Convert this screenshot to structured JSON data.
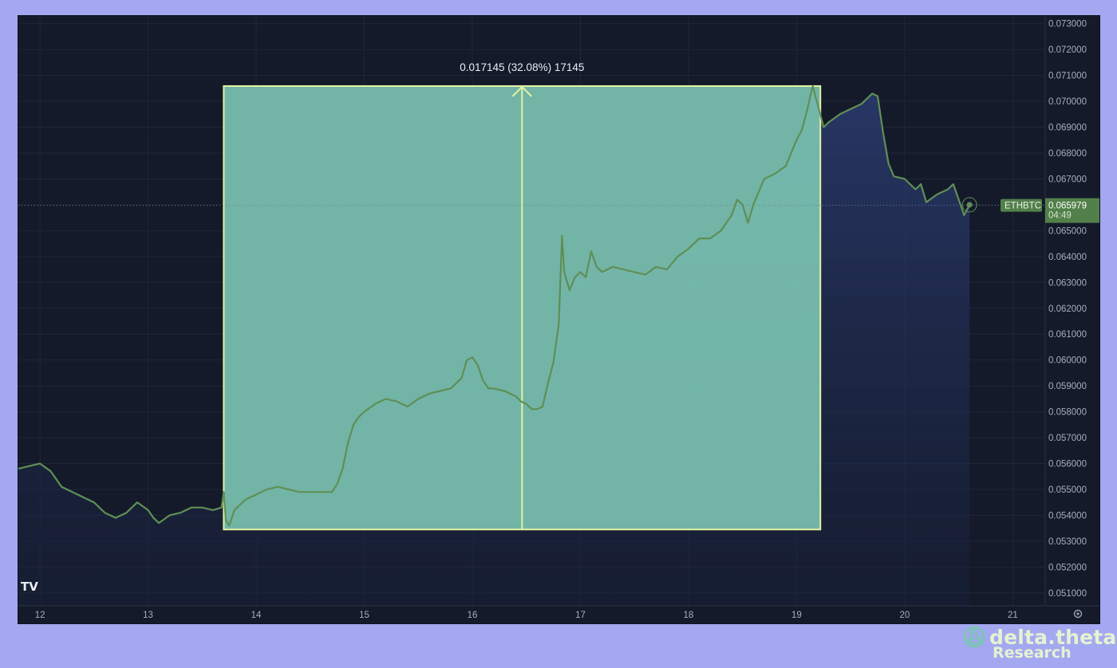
{
  "chart_data": {
    "type": "line",
    "symbol": "ETHBTC",
    "last_price": "0.065979",
    "countdown": "04:49",
    "x_ticks": [
      "12",
      "13",
      "14",
      "15",
      "16",
      "17",
      "18",
      "19",
      "20",
      "21"
    ],
    "y_ticks": [
      "0.073000",
      "0.072000",
      "0.071000",
      "0.070000",
      "0.069000",
      "0.068000",
      "0.067000",
      "0.066000",
      "0.065000",
      "0.064000",
      "0.063000",
      "0.062000",
      "0.061000",
      "0.060000",
      "0.059000",
      "0.058000",
      "0.057000",
      "0.056000",
      "0.055000",
      "0.054000",
      "0.053000",
      "0.052000",
      "0.051000"
    ],
    "xlim": [
      11.8,
      21.3
    ],
    "ylim": [
      0.0505,
      0.0733
    ],
    "grid": true,
    "series": [
      {
        "color": "#5f8f55",
        "x": [
          11.8,
          11.9,
          12.0,
          12.1,
          12.2,
          12.3,
          12.4,
          12.5,
          12.6,
          12.7,
          12.8,
          12.85,
          12.9,
          13.0,
          13.05,
          13.1,
          13.2,
          13.3,
          13.4,
          13.5,
          13.6,
          13.68,
          13.7,
          13.72,
          13.75,
          13.8,
          13.9,
          14.0,
          14.1,
          14.2,
          14.3,
          14.4,
          14.5,
          14.6,
          14.7,
          14.75,
          14.8,
          14.85,
          14.9,
          14.95,
          15.0,
          15.1,
          15.2,
          15.3,
          15.4,
          15.5,
          15.6,
          15.7,
          15.8,
          15.9,
          15.95,
          16.0,
          16.05,
          16.1,
          16.15,
          16.2,
          16.3,
          16.4,
          16.45,
          16.5,
          16.55,
          16.6,
          16.65,
          16.7,
          16.75,
          16.8,
          16.83,
          16.85,
          16.87,
          16.9,
          16.95,
          17.0,
          17.05,
          17.1,
          17.15,
          17.2,
          17.3,
          17.4,
          17.5,
          17.6,
          17.7,
          17.8,
          17.9,
          18.0,
          18.1,
          18.2,
          18.3,
          18.4,
          18.45,
          18.5,
          18.55,
          18.6,
          18.7,
          18.8,
          18.9,
          19.0,
          19.05,
          19.1,
          19.15,
          19.18,
          19.2,
          19.25,
          19.3,
          19.4,
          19.5,
          19.6,
          19.7,
          19.75,
          19.8,
          19.85,
          19.9,
          20.0,
          20.1,
          20.15,
          20.2,
          20.3,
          20.4,
          20.45,
          20.5,
          20.55,
          20.6
        ],
        "y": [
          0.0558,
          0.0559,
          0.056,
          0.0557,
          0.0551,
          0.0549,
          0.0547,
          0.0545,
          0.0541,
          0.0539,
          0.0541,
          0.0543,
          0.0545,
          0.0542,
          0.0539,
          0.0537,
          0.054,
          0.0541,
          0.0543,
          0.0543,
          0.0542,
          0.0543,
          0.0549,
          0.0538,
          0.0536,
          0.0542,
          0.0546,
          0.0548,
          0.055,
          0.0551,
          0.055,
          0.0549,
          0.0549,
          0.0549,
          0.0549,
          0.0552,
          0.0558,
          0.0568,
          0.0575,
          0.0578,
          0.058,
          0.0583,
          0.0585,
          0.0584,
          0.0582,
          0.0585,
          0.0587,
          0.0588,
          0.0589,
          0.0593,
          0.06,
          0.0601,
          0.0598,
          0.0592,
          0.0589,
          0.0589,
          0.0588,
          0.0586,
          0.0584,
          0.0583,
          0.0581,
          0.0581,
          0.0582,
          0.0591,
          0.0599,
          0.0614,
          0.0648,
          0.0634,
          0.0631,
          0.0627,
          0.0632,
          0.0634,
          0.0632,
          0.0642,
          0.0636,
          0.0634,
          0.0636,
          0.0635,
          0.0634,
          0.0633,
          0.0636,
          0.0635,
          0.064,
          0.0643,
          0.0647,
          0.0647,
          0.065,
          0.0656,
          0.0662,
          0.066,
          0.0653,
          0.066,
          0.067,
          0.0672,
          0.0675,
          0.0685,
          0.0689,
          0.0697,
          0.0706,
          0.0701,
          0.0698,
          0.069,
          0.0692,
          0.0695,
          0.0697,
          0.0699,
          0.0703,
          0.0702,
          0.0688,
          0.0676,
          0.0671,
          0.067,
          0.0666,
          0.0668,
          0.0661,
          0.0664,
          0.0666,
          0.0668,
          0.0662,
          0.0656,
          0.066
        ]
      }
    ]
  },
  "measure": {
    "label": "0.017145 (32.08%) 17145",
    "x_start": 13.7,
    "x_end": 19.22,
    "x_arrow": 16.46,
    "y_low": 0.05345,
    "y_high": 0.07059
  },
  "brand": {
    "name": "delta.theta",
    "subtitle": "Research",
    "chart_logo": "TV",
    "settings_icon": "gear-icon"
  }
}
